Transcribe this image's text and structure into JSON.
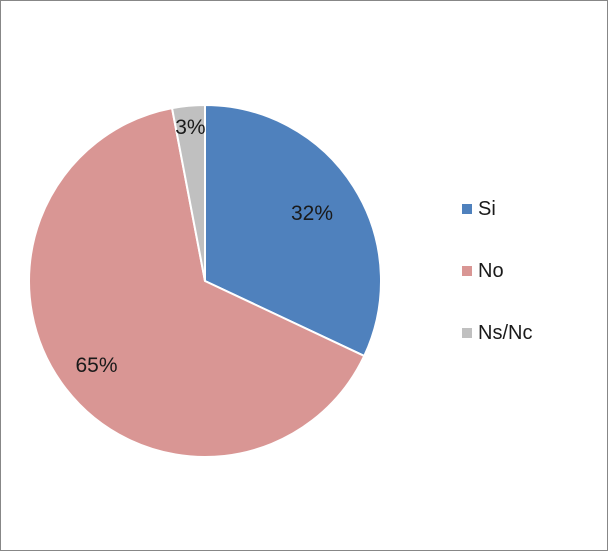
{
  "chart_data": {
    "type": "pie",
    "title": "",
    "categories": [
      "Si",
      "No",
      "Ns/Nc"
    ],
    "values": [
      32,
      65,
      3
    ],
    "data_labels": [
      "32%",
      "65%",
      "3%"
    ],
    "colors": [
      "#4f81bd",
      "#d99694",
      "#c0c0c0"
    ],
    "start_angle_deg": 0,
    "direction": "clockwise",
    "legend": {
      "position": "right",
      "entries": [
        "Si",
        "No",
        "Ns/Nc"
      ]
    }
  }
}
